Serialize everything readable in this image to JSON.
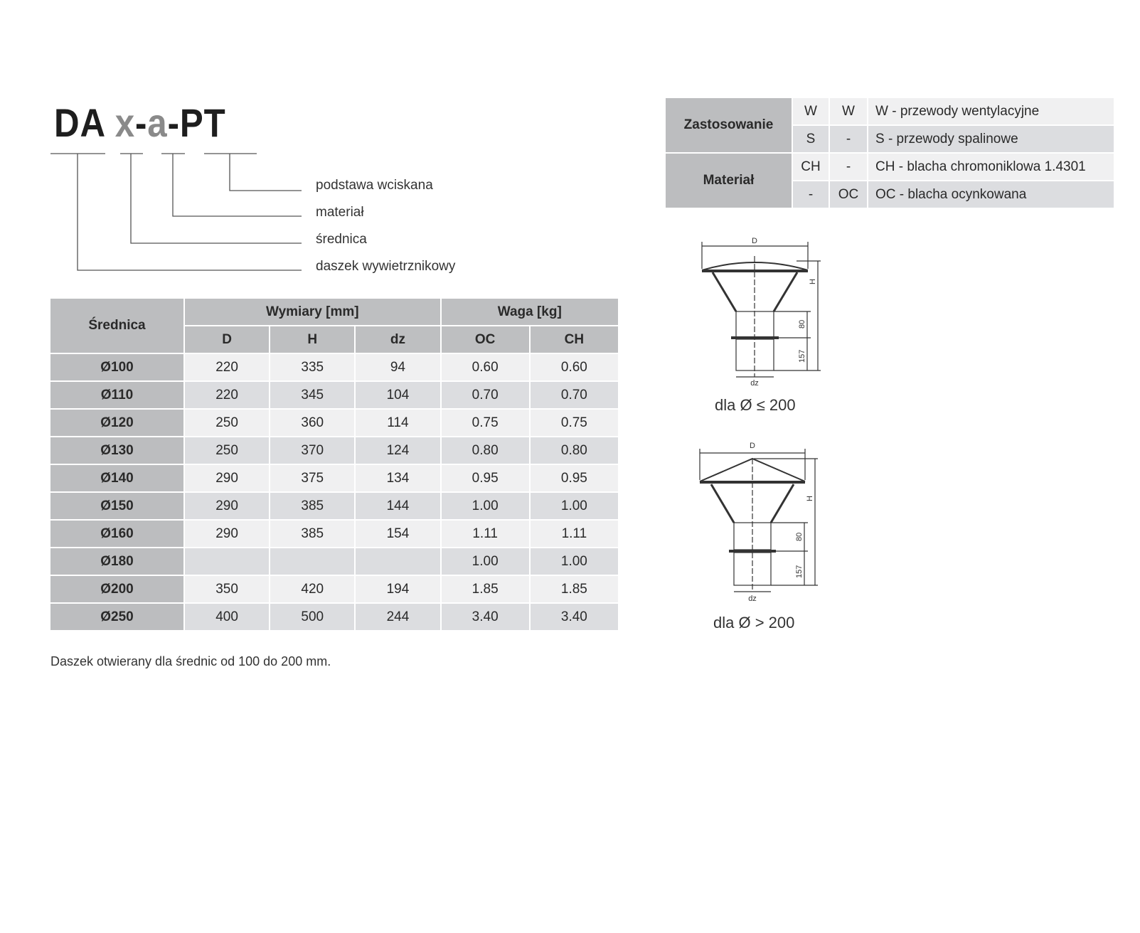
{
  "code": {
    "part1": "DA",
    "part2": "x",
    "sep1": "-",
    "part3": "a",
    "sep2": "-",
    "part4": "PT"
  },
  "legend": [
    "podstawa wciskana",
    "materiał",
    "średnica",
    "daszek wywietrznikowy"
  ],
  "main_table": {
    "headers": {
      "srednica": "Średnica",
      "wymiary": "Wymiary [mm]",
      "waga": "Waga [kg]",
      "D": "D",
      "H": "H",
      "dz": "dz",
      "OC": "OC",
      "CH": "CH"
    },
    "rows": [
      {
        "d": "Ø100",
        "D": "220",
        "H": "335",
        "dz": "94",
        "OC": "0.60",
        "CH": "0.60"
      },
      {
        "d": "Ø110",
        "D": "220",
        "H": "345",
        "dz": "104",
        "OC": "0.70",
        "CH": "0.70"
      },
      {
        "d": "Ø120",
        "D": "250",
        "H": "360",
        "dz": "114",
        "OC": "0.75",
        "CH": "0.75"
      },
      {
        "d": "Ø130",
        "D": "250",
        "H": "370",
        "dz": "124",
        "OC": "0.80",
        "CH": "0.80"
      },
      {
        "d": "Ø140",
        "D": "290",
        "H": "375",
        "dz": "134",
        "OC": "0.95",
        "CH": "0.95"
      },
      {
        "d": "Ø150",
        "D": "290",
        "H": "385",
        "dz": "144",
        "OC": "1.00",
        "CH": "1.00"
      },
      {
        "d": "Ø160",
        "D": "290",
        "H": "385",
        "dz": "154",
        "OC": "1.11",
        "CH": "1.11"
      },
      {
        "d": "Ø180",
        "D": "",
        "H": "",
        "dz": "",
        "OC": "1.00",
        "CH": "1.00"
      },
      {
        "d": "Ø200",
        "D": "350",
        "H": "420",
        "dz": "194",
        "OC": "1.85",
        "CH": "1.85"
      },
      {
        "d": "Ø250",
        "D": "400",
        "H": "500",
        "dz": "244",
        "OC": "3.40",
        "CH": "3.40"
      }
    ]
  },
  "side_table": {
    "groups": [
      "Zastosowanie",
      "Materiał"
    ],
    "rows": [
      {
        "a": "W",
        "b": "W",
        "desc": "W - przewody wentylacyjne"
      },
      {
        "a": "S",
        "b": "-",
        "desc": "S - przewody spalinowe"
      },
      {
        "a": "CH",
        "b": "-",
        "desc": "CH - blacha chromoniklowa 1.4301"
      },
      {
        "a": "-",
        "b": "OC",
        "desc": "OC - blacha ocynkowana"
      }
    ]
  },
  "diagrams": [
    {
      "caption": "dla Ø ≤ 200",
      "D": "D",
      "H": "H",
      "h1": "80",
      "h2": "157",
      "dz": "dz"
    },
    {
      "caption": "dla Ø > 200",
      "D": "D",
      "H": "H",
      "h1": "80",
      "h2": "157",
      "dz": "dz"
    }
  ],
  "note": "Daszek otwierany dla średnic od 100 do 200 mm."
}
